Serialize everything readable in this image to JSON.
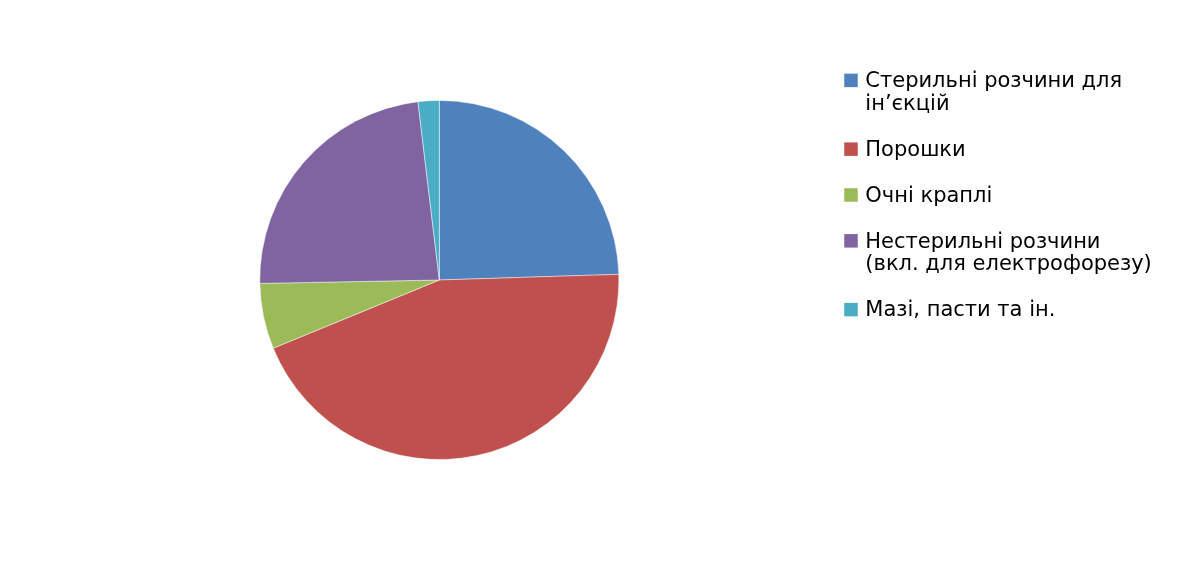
{
  "chart_data": {
    "type": "pie",
    "categories": [
      "Стерильні розчини для ін’єкцій",
      "Порошки",
      "Очні краплі",
      "Нестерильні розчини (вкл. для електрофорезу)",
      "Мазі, пасти та ін."
    ],
    "values": [
      24.5,
      44.3,
      5.9,
      23.4,
      1.9
    ],
    "colors": [
      "#4f81bd",
      "#c0504d",
      "#9bbb59",
      "#8064a2",
      "#4bacc6"
    ],
    "legend": "right"
  }
}
